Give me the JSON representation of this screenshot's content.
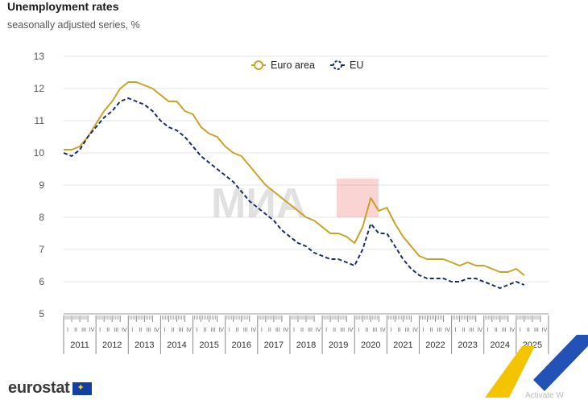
{
  "header": {
    "title": "Unemployment rates",
    "subtitle": "seasonally adjusted series, %"
  },
  "footer": {
    "logo_text": "eurostat",
    "activate_text": "Activate W"
  },
  "watermark": {
    "text": "МИА"
  },
  "colors": {
    "euro_area": "#c9a227",
    "eu": "#1a2d6b",
    "grid": "#e4e4e4",
    "axis_text": "#555555"
  },
  "chart_data": {
    "type": "line",
    "title": "Unemployment rates",
    "subtitle": "seasonally adjusted series, %",
    "xlabel": "",
    "ylabel": "",
    "ylim": [
      5,
      13
    ],
    "yticks": [
      5,
      6,
      7,
      8,
      9,
      10,
      11,
      12,
      13
    ],
    "years": [
      "2011",
      "2012",
      "2013",
      "2014",
      "2015",
      "2016",
      "2017",
      "2018",
      "2019",
      "2020",
      "2021",
      "2022",
      "2023",
      "2024",
      "2025"
    ],
    "quarter_labels": [
      "I",
      "II",
      "III",
      "IV"
    ],
    "x_start": 2011.0,
    "x_end": 2026.0,
    "legend": {
      "position": "top-center"
    },
    "series": [
      {
        "name": "Euro area",
        "style": "solid",
        "points": [
          [
            2011.0,
            10.1
          ],
          [
            2011.25,
            10.1
          ],
          [
            2011.5,
            10.2
          ],
          [
            2011.75,
            10.5
          ],
          [
            2012.0,
            10.9
          ],
          [
            2012.25,
            11.3
          ],
          [
            2012.5,
            11.6
          ],
          [
            2012.75,
            12.0
          ],
          [
            2013.0,
            12.2
          ],
          [
            2013.25,
            12.2
          ],
          [
            2013.5,
            12.1
          ],
          [
            2013.75,
            12.0
          ],
          [
            2014.0,
            11.8
          ],
          [
            2014.25,
            11.6
          ],
          [
            2014.5,
            11.6
          ],
          [
            2014.75,
            11.3
          ],
          [
            2015.0,
            11.2
          ],
          [
            2015.25,
            10.8
          ],
          [
            2015.5,
            10.6
          ],
          [
            2015.75,
            10.5
          ],
          [
            2016.0,
            10.2
          ],
          [
            2016.25,
            10.0
          ],
          [
            2016.5,
            9.9
          ],
          [
            2016.75,
            9.6
          ],
          [
            2017.0,
            9.3
          ],
          [
            2017.25,
            9.0
          ],
          [
            2017.5,
            8.8
          ],
          [
            2017.75,
            8.6
          ],
          [
            2018.0,
            8.4
          ],
          [
            2018.25,
            8.2
          ],
          [
            2018.5,
            8.0
          ],
          [
            2018.75,
            7.9
          ],
          [
            2019.0,
            7.7
          ],
          [
            2019.25,
            7.5
          ],
          [
            2019.5,
            7.5
          ],
          [
            2019.75,
            7.4
          ],
          [
            2020.0,
            7.2
          ],
          [
            2020.25,
            7.7
          ],
          [
            2020.5,
            8.6
          ],
          [
            2020.75,
            8.2
          ],
          [
            2021.0,
            8.3
          ],
          [
            2021.25,
            7.8
          ],
          [
            2021.5,
            7.4
          ],
          [
            2021.75,
            7.1
          ],
          [
            2022.0,
            6.8
          ],
          [
            2022.25,
            6.7
          ],
          [
            2022.5,
            6.7
          ],
          [
            2022.75,
            6.7
          ],
          [
            2023.0,
            6.6
          ],
          [
            2023.25,
            6.5
          ],
          [
            2023.5,
            6.6
          ],
          [
            2023.75,
            6.5
          ],
          [
            2024.0,
            6.5
          ],
          [
            2024.25,
            6.4
          ],
          [
            2024.5,
            6.3
          ],
          [
            2024.75,
            6.3
          ],
          [
            2025.0,
            6.4
          ],
          [
            2025.25,
            6.2
          ]
        ]
      },
      {
        "name": "EU",
        "style": "dashed",
        "points": [
          [
            2011.0,
            10.0
          ],
          [
            2011.25,
            9.9
          ],
          [
            2011.5,
            10.1
          ],
          [
            2011.75,
            10.5
          ],
          [
            2012.0,
            10.8
          ],
          [
            2012.25,
            11.1
          ],
          [
            2012.5,
            11.3
          ],
          [
            2012.75,
            11.6
          ],
          [
            2013.0,
            11.7
          ],
          [
            2013.25,
            11.6
          ],
          [
            2013.5,
            11.5
          ],
          [
            2013.75,
            11.3
          ],
          [
            2014.0,
            11.0
          ],
          [
            2014.25,
            10.8
          ],
          [
            2014.5,
            10.7
          ],
          [
            2014.75,
            10.5
          ],
          [
            2015.0,
            10.2
          ],
          [
            2015.25,
            9.9
          ],
          [
            2015.5,
            9.7
          ],
          [
            2015.75,
            9.5
          ],
          [
            2016.0,
            9.3
          ],
          [
            2016.25,
            9.1
          ],
          [
            2016.5,
            8.8
          ],
          [
            2016.75,
            8.5
          ],
          [
            2017.0,
            8.3
          ],
          [
            2017.25,
            8.1
          ],
          [
            2017.5,
            7.9
          ],
          [
            2017.75,
            7.6
          ],
          [
            2018.0,
            7.4
          ],
          [
            2018.25,
            7.2
          ],
          [
            2018.5,
            7.1
          ],
          [
            2018.75,
            6.9
          ],
          [
            2019.0,
            6.8
          ],
          [
            2019.25,
            6.7
          ],
          [
            2019.5,
            6.7
          ],
          [
            2019.75,
            6.6
          ],
          [
            2020.0,
            6.5
          ],
          [
            2020.25,
            7.0
          ],
          [
            2020.5,
            7.8
          ],
          [
            2020.75,
            7.5
          ],
          [
            2021.0,
            7.5
          ],
          [
            2021.25,
            7.1
          ],
          [
            2021.5,
            6.7
          ],
          [
            2021.75,
            6.4
          ],
          [
            2022.0,
            6.2
          ],
          [
            2022.25,
            6.1
          ],
          [
            2022.5,
            6.1
          ],
          [
            2022.75,
            6.1
          ],
          [
            2023.0,
            6.0
          ],
          [
            2023.25,
            6.0
          ],
          [
            2023.5,
            6.1
          ],
          [
            2023.75,
            6.1
          ],
          [
            2024.0,
            6.0
          ],
          [
            2024.25,
            5.9
          ],
          [
            2024.5,
            5.8
          ],
          [
            2024.75,
            5.9
          ],
          [
            2025.0,
            6.0
          ],
          [
            2025.25,
            5.9
          ]
        ]
      }
    ]
  }
}
